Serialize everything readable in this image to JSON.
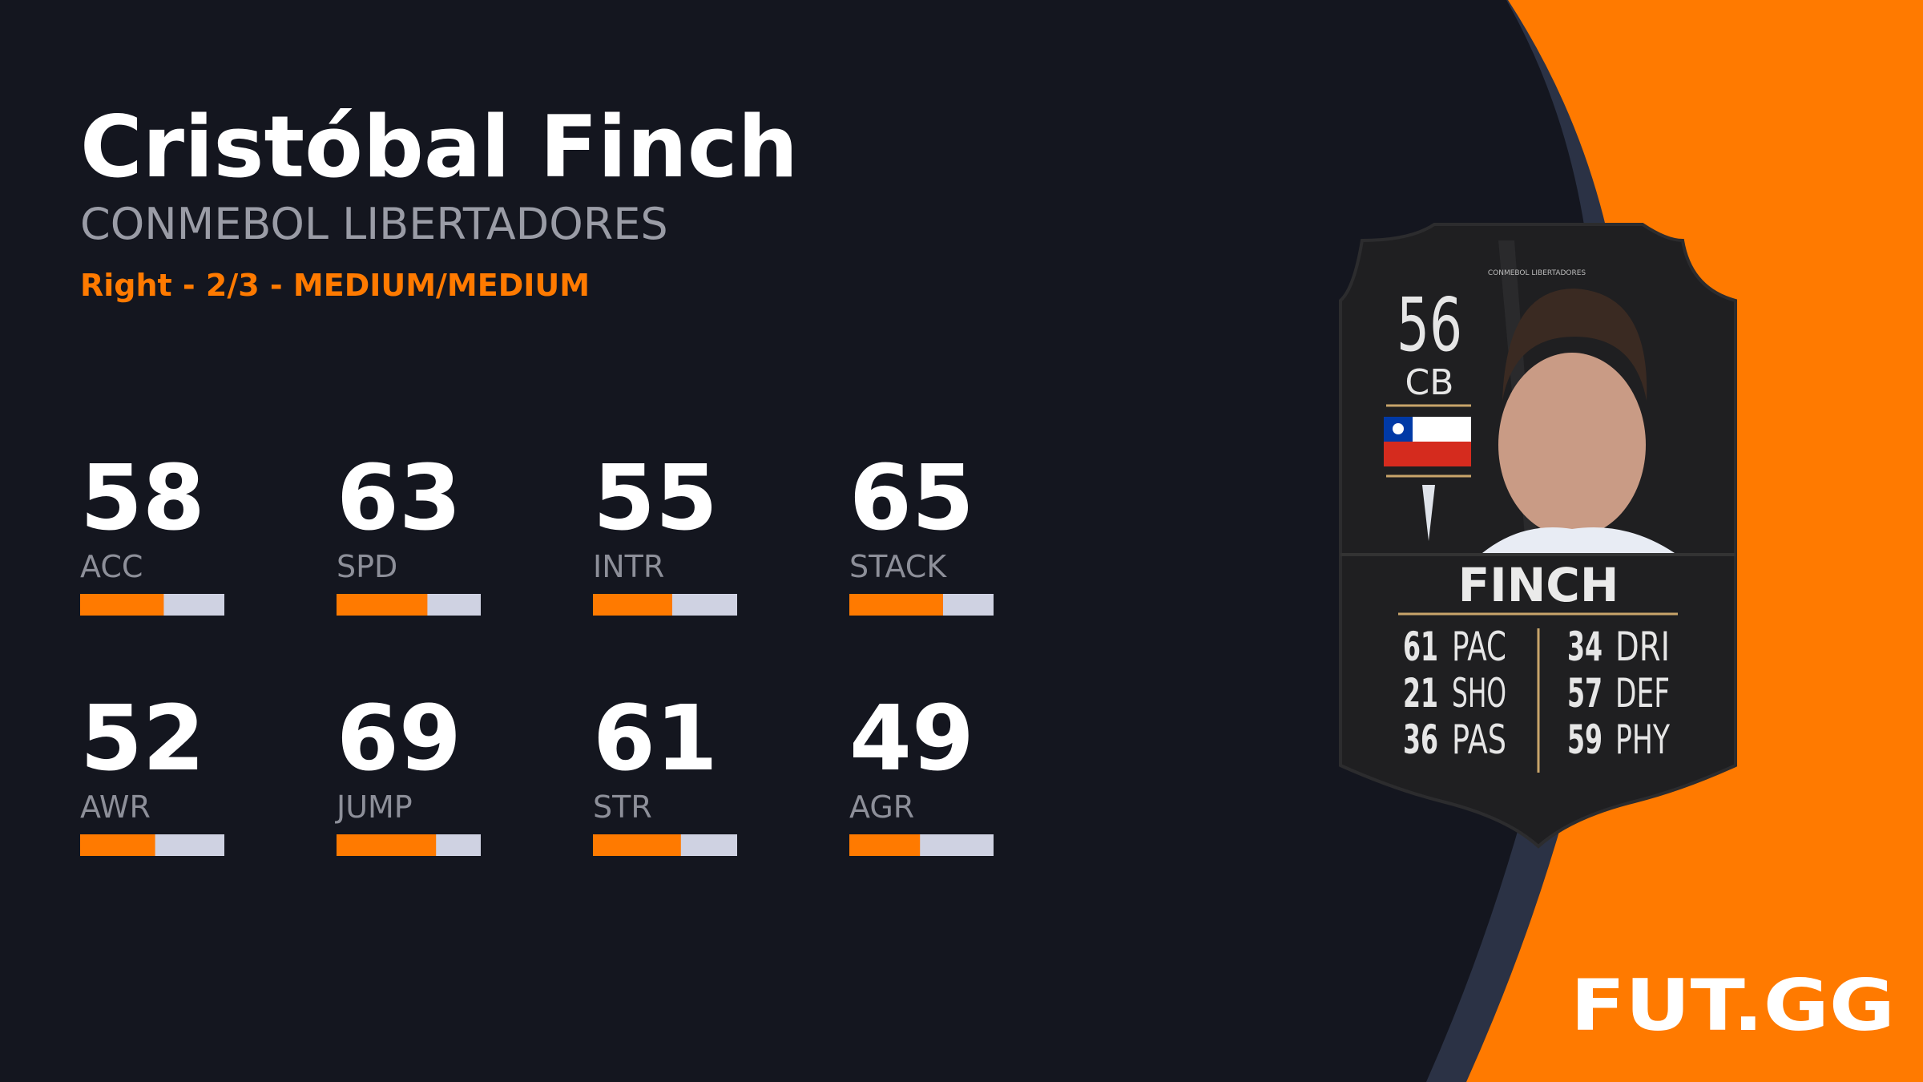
{
  "header": {
    "name": "Cristóbal Finch",
    "league": "CONMEBOL LIBERTADORES",
    "info": "Right - 2/3 - MEDIUM/MEDIUM"
  },
  "stats": [
    {
      "value": 58,
      "label": "ACC"
    },
    {
      "value": 63,
      "label": "SPD"
    },
    {
      "value": 55,
      "label": "INTR"
    },
    {
      "value": 65,
      "label": "STACK"
    },
    {
      "value": 52,
      "label": "AWR"
    },
    {
      "value": 69,
      "label": "JUMP"
    },
    {
      "value": 61,
      "label": "STR"
    },
    {
      "value": 49,
      "label": "AGR"
    }
  ],
  "card": {
    "league": "CONMEBOL LIBERTADORES",
    "rating": 56,
    "position": "CB",
    "name": "FINCH",
    "stats": [
      {
        "value": 61,
        "label": "PAC"
      },
      {
        "value": 21,
        "label": "SHO"
      },
      {
        "value": 36,
        "label": "PAS"
      },
      {
        "value": 34,
        "label": "DRI"
      },
      {
        "value": 57,
        "label": "DEF"
      },
      {
        "value": 59,
        "label": "PHY"
      }
    ]
  },
  "logo": "FUT.GG"
}
